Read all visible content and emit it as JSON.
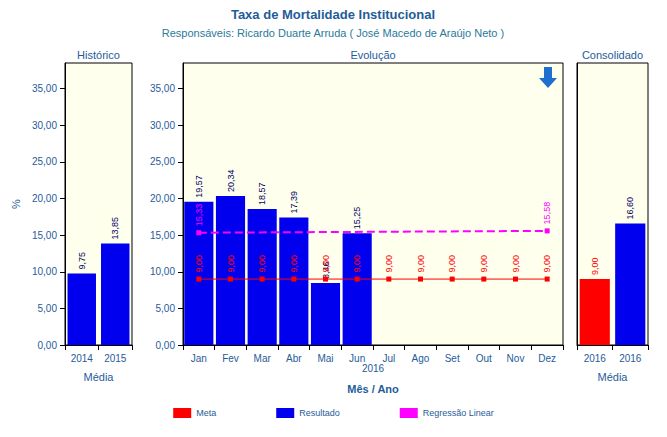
{
  "header": {
    "title": "Taxa de Mortalidade Institucional",
    "subtitle": "Responsáveis: Ricardo Duarte Arruda ( José Macedo de Araújo Neto )"
  },
  "chart_data": [
    {
      "type": "bar",
      "title": "Histórico",
      "categories": [
        "2014",
        "2015"
      ],
      "xlabel": "Média",
      "ylabel": "%",
      "ylim": [
        0,
        38.5
      ],
      "yticks": [
        {
          "value": 0,
          "label": "0,00"
        },
        {
          "value": 5,
          "label": "5,00"
        },
        {
          "value": 10,
          "label": "10,00"
        },
        {
          "value": 15,
          "label": "15,00"
        },
        {
          "value": 20,
          "label": "20,00"
        },
        {
          "value": 25,
          "label": "25,00"
        },
        {
          "value": 30,
          "label": "30,00"
        },
        {
          "value": 35,
          "label": "35,00"
        }
      ],
      "grid": false,
      "data_labels": true,
      "series": [
        {
          "name": "Resultado",
          "color": "#0000ee",
          "values": [
            9.75,
            13.85
          ],
          "value_labels": [
            "9,75",
            "13,85"
          ]
        }
      ]
    },
    {
      "type": "bar",
      "title": "Evolução",
      "categories": [
        "Jan",
        "Fev",
        "Mar",
        "Abr",
        "Mai",
        "Jun",
        "Jul",
        "Ago",
        "Set",
        "Out",
        "Nov",
        "Dez"
      ],
      "xlabel": "Mês / Ano",
      "annotation": "2016",
      "ylim": [
        0,
        38.5
      ],
      "yticks": [
        {
          "value": 0,
          "label": "0,00"
        },
        {
          "value": 5,
          "label": "5,00"
        },
        {
          "value": 10,
          "label": "10,00"
        },
        {
          "value": 15,
          "label": "15,00"
        },
        {
          "value": 20,
          "label": "20,00"
        },
        {
          "value": 25,
          "label": "25,00"
        },
        {
          "value": 30,
          "label": "30,00"
        },
        {
          "value": 35,
          "label": "35,00"
        }
      ],
      "grid": false,
      "data_labels": true,
      "legend": "bottom",
      "series": [
        {
          "name": "Meta",
          "type": "line",
          "color": "#ff0000",
          "marker": "square",
          "values": [
            9,
            9,
            9,
            9,
            9,
            9,
            9,
            9,
            9,
            9,
            9,
            9
          ],
          "value_labels": [
            "9,00",
            "9,00",
            "9,00",
            "9,00",
            "9,00",
            "9,00",
            "9,00",
            "9,00",
            "9,00",
            "9,00",
            "9,00",
            "9,00"
          ]
        },
        {
          "name": "Resultado",
          "type": "bar",
          "color": "#0000ee",
          "values": [
            19.57,
            20.34,
            18.57,
            17.39,
            8.46,
            15.25,
            null,
            null,
            null,
            null,
            null,
            null
          ],
          "value_labels": [
            "19,57",
            "20,34",
            "18,57",
            "17,39",
            "8,46",
            "15,25",
            null,
            null,
            null,
            null,
            null,
            null
          ]
        },
        {
          "name": "Regressão Linear",
          "type": "line",
          "color": "#ff00ff",
          "marker": "square",
          "line_style": "dashed",
          "values": [
            15.33,
            null,
            null,
            null,
            null,
            null,
            null,
            null,
            null,
            null,
            null,
            15.58
          ],
          "value_labels": [
            "15,33",
            null,
            null,
            null,
            null,
            null,
            null,
            null,
            null,
            null,
            null,
            "15,58"
          ]
        }
      ]
    },
    {
      "type": "bar",
      "title": "Consolidado",
      "categories": [
        "2016",
        "2016"
      ],
      "xlabel": "Média",
      "ylim": [
        0,
        38.5
      ],
      "yticks": [
        {
          "value": 0,
          "label": "0,00"
        },
        {
          "value": 5,
          "label": "5,00"
        },
        {
          "value": 10,
          "label": "10,00"
        },
        {
          "value": 15,
          "label": "15,00"
        },
        {
          "value": 20,
          "label": "20,00"
        },
        {
          "value": 25,
          "label": "25,00"
        },
        {
          "value": 30,
          "label": "30,00"
        },
        {
          "value": 35,
          "label": "35,00"
        }
      ],
      "grid": false,
      "data_labels": true,
      "stacked": true,
      "tick_labels": "x",
      "series": [
        {
          "name": "Meta",
          "color": "#ff0000",
          "values": [
            9,
            null
          ],
          "value_labels": [
            "9,00",
            null
          ]
        },
        {
          "name": "Resultado",
          "color": "#0000ee",
          "values": [
            null,
            16.6
          ],
          "value_labels": [
            null,
            "16,60"
          ]
        }
      ]
    }
  ]
}
